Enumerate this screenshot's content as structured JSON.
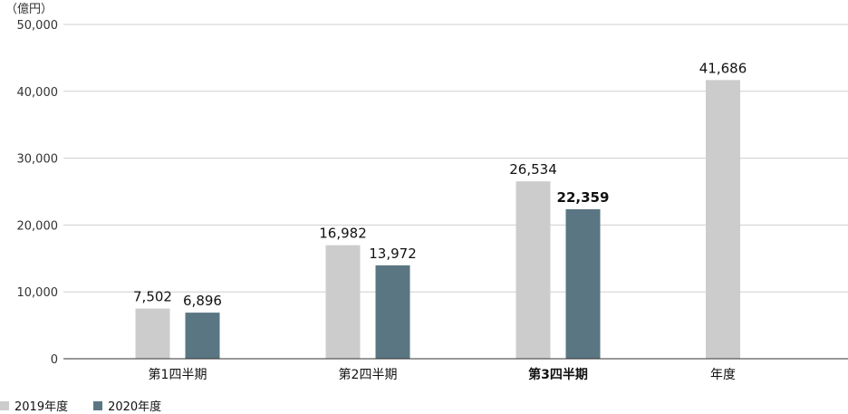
{
  "chart_data": {
    "type": "bar",
    "unit": "（億円）",
    "categories": [
      "第1四半期",
      "第2四半期",
      "第3四半期",
      "年度"
    ],
    "highlight_category": "第3四半期",
    "series": [
      {
        "name": "2019年度",
        "color": "#cccccc",
        "values": [
          7502,
          16982,
          26534,
          41686
        ]
      },
      {
        "name": "2020年度",
        "color": "#5a7682",
        "values": [
          6896,
          13972,
          22359,
          null
        ]
      }
    ],
    "value_labels": [
      [
        "7,502",
        "16,982",
        "26,534",
        "41,686"
      ],
      [
        "6,896",
        "13,972",
        "22,359",
        ""
      ]
    ],
    "ylim": [
      0,
      50000
    ],
    "yticks": [
      0,
      10000,
      20000,
      30000,
      40000,
      50000
    ],
    "ytick_labels": [
      "0",
      "10,000",
      "20,000",
      "30,000",
      "40,000",
      "50,000"
    ],
    "grid": true,
    "legend_position": "bottom-left",
    "highlight_color": "#5a7682"
  }
}
